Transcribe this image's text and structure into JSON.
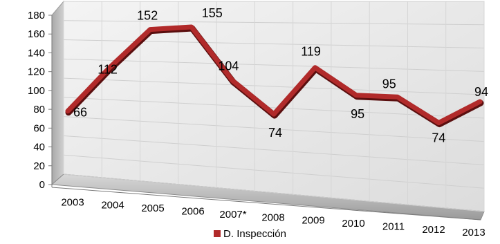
{
  "chart_data": {
    "type": "line",
    "categories": [
      "2003",
      "2004",
      "2005",
      "2006",
      "2007*",
      "2008",
      "2009",
      "2010",
      "2011",
      "2012",
      "2013"
    ],
    "series": [
      {
        "name": "D. Inspección",
        "values": [
          66,
          112,
          152,
          155,
          104,
          74,
          119,
          95,
          95,
          74,
          94
        ],
        "color": "#b12a2a"
      }
    ],
    "data_labels": [
      "66",
      "112",
      "152",
      "155",
      "104",
      "74",
      "119",
      "95",
      "95",
      "74",
      "94"
    ],
    "y_ticks": [
      0,
      20,
      40,
      60,
      80,
      100,
      120,
      140,
      160,
      180
    ],
    "ylim": [
      0,
      180
    ],
    "grid": true,
    "style": "3d",
    "legend_position": "bottom",
    "title": "",
    "xlabel": "",
    "ylabel": ""
  }
}
